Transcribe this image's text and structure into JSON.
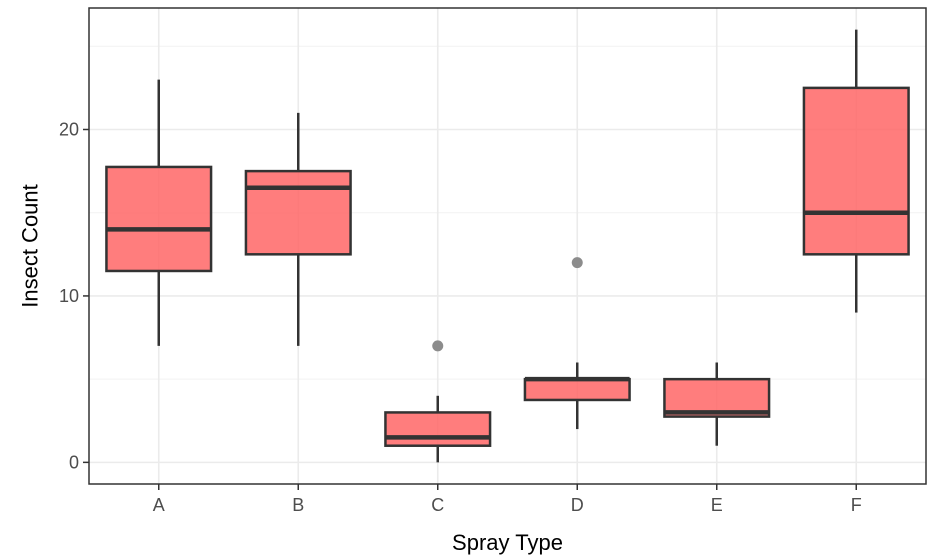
{
  "chart_data": {
    "type": "boxplot",
    "title": "",
    "xlabel": "Spray Type",
    "ylabel": "Insect Count",
    "categories": [
      "A",
      "B",
      "C",
      "D",
      "E",
      "F"
    ],
    "ylim": [
      -1.3,
      27.3
    ],
    "yticks": [
      0,
      10,
      20
    ],
    "y_minor_gridlines": [
      5,
      15,
      25
    ],
    "grid": true,
    "theme": "bw",
    "fill_color": "#FF6666",
    "outline_color": "#333333",
    "outlier_color": "#8c8c8c",
    "boxes": [
      {
        "category": "A",
        "whisker_low": 7,
        "q1": 11.5,
        "median": 14,
        "q3": 17.75,
        "whisker_high": 23,
        "outliers": []
      },
      {
        "category": "B",
        "whisker_low": 7,
        "q1": 12.5,
        "median": 16.5,
        "q3": 17.5,
        "whisker_high": 21,
        "outliers": []
      },
      {
        "category": "C",
        "whisker_low": 0,
        "q1": 1,
        "median": 1.5,
        "q3": 3,
        "whisker_high": 4,
        "outliers": [
          7
        ]
      },
      {
        "category": "D",
        "whisker_low": 2,
        "q1": 3.75,
        "median": 5,
        "q3": 5,
        "whisker_high": 6,
        "outliers": [
          12
        ]
      },
      {
        "category": "E",
        "whisker_low": 1,
        "q1": 2.75,
        "median": 3,
        "q3": 5,
        "whisker_high": 6,
        "outliers": []
      },
      {
        "category": "F",
        "whisker_low": 9,
        "q1": 12.5,
        "median": 15,
        "q3": 22.5,
        "whisker_high": 26,
        "outliers": []
      }
    ]
  }
}
